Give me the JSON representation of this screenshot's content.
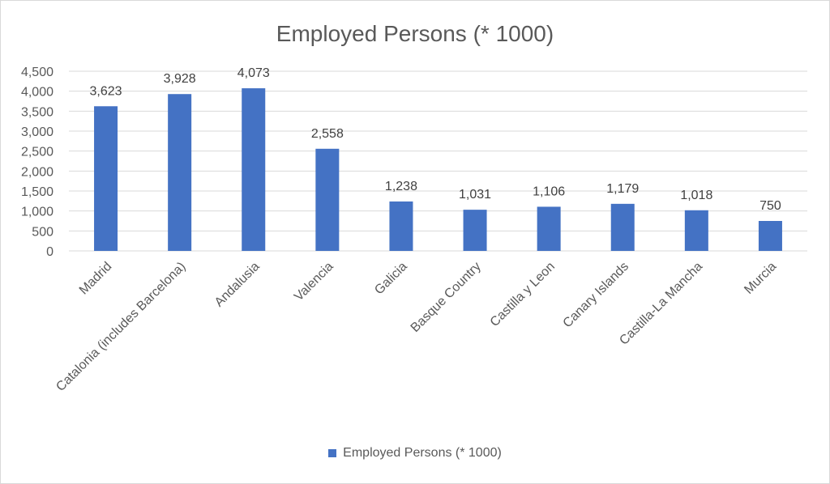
{
  "chart_data": {
    "type": "bar",
    "title": "Employed Persons (* 1000)",
    "categories": [
      "Madrid",
      "Catalonia (includes Barcelona)",
      "Andalusia",
      "Valencia",
      "Galicia",
      "Basque Country",
      "Castilla y Leon",
      "Canary Islands",
      "Castilla-La Mancha",
      "Murcia"
    ],
    "series": [
      {
        "name": "Employed Persons (* 1000)",
        "values": [
          3623,
          3928,
          4073,
          2558,
          1238,
          1031,
          1106,
          1179,
          1018,
          750
        ]
      }
    ],
    "data_labels": [
      "3,623",
      "3,928",
      "4,073",
      "2,558",
      "1,238",
      "1,031",
      "1,106",
      "1,179",
      "1,018",
      "750"
    ],
    "y_ticks": [
      "0",
      "500",
      "1,000",
      "1,500",
      "2,000",
      "2,500",
      "3,000",
      "3,500",
      "4,000",
      "4,500"
    ],
    "ylim": [
      0,
      4500
    ],
    "grid": true,
    "legend_position": "bottom",
    "bar_color": "#4472c4"
  }
}
